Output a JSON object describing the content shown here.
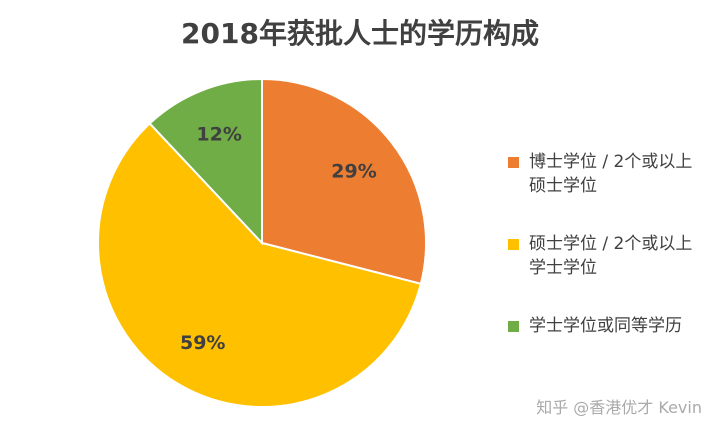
{
  "chart_data": {
    "type": "pie",
    "title": "2018年获批人士的学历构成",
    "slices": [
      {
        "label": "博士学位 / 2个或以上硕士学位",
        "value": 29,
        "display": "29%",
        "color": "#ED7D31"
      },
      {
        "label": "硕士学位 / 2个或以上学士学位",
        "value": 59,
        "display": "59%",
        "color": "#FFC000"
      },
      {
        "label": "学士学位或同等学历",
        "value": 12,
        "display": "12%",
        "color": "#70AD47"
      }
    ],
    "legend_position": "right"
  },
  "watermark": "知乎 @香港优才 Kevin"
}
